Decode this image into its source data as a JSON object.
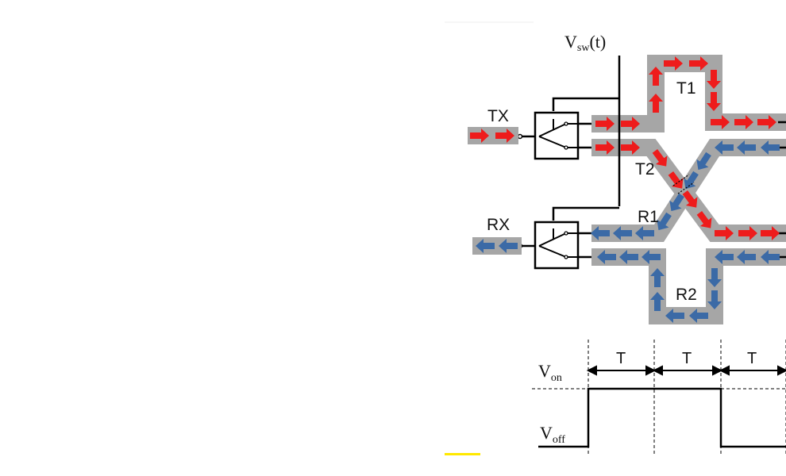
{
  "labels": {
    "vsw_main": "V",
    "vsw_sub": "sw",
    "vsw_tail": "(t)",
    "tx": "TX",
    "rx": "RX",
    "t1": "T1",
    "t2": "T2",
    "r1": "R1",
    "r2": "R2",
    "von_main": "V",
    "von_sub": "on",
    "voff_main": "V",
    "voff_sub": "off",
    "period": "T"
  },
  "colors": {
    "tx_arrow": "#ee1c1c",
    "rx_arrow": "#3b6aa6",
    "path_bg": "#a6a6a6",
    "line": "#000000",
    "highlight": "#ffe800"
  },
  "timing": {
    "periods": [
      "T",
      "T",
      "T"
    ],
    "waveform_levels": [
      "off",
      "on",
      "on",
      "off"
    ]
  }
}
